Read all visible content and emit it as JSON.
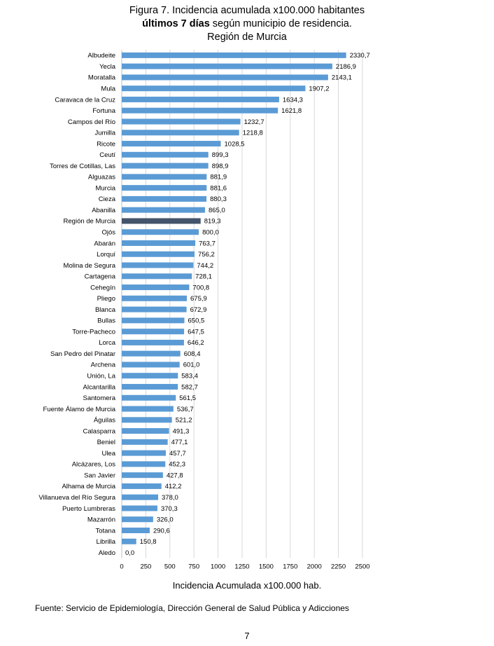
{
  "header": {
    "title_line1": "Figura 7. Incidencia acumulada x100.000 habitantes",
    "title_line2_bold": "últimos 7 días",
    "title_line2_rest": " según municipio de residencia.",
    "title_line3": "Región de Murcia"
  },
  "footer": {
    "source": "Fuente: Servicio de Epidemiología, Dirección General de Salud Pública y Adicciones",
    "page_number": "7"
  },
  "colors": {
    "bar": "#5b9bd5",
    "highlight": "#44546a",
    "grid": "#d9d9d9"
  },
  "chart_data": {
    "type": "bar",
    "orientation": "horizontal",
    "xlabel": "Incidencia Acumulada x100.000 hab.",
    "ylabel": "",
    "xlim": [
      0,
      2500
    ],
    "xticks": [
      0,
      250,
      500,
      750,
      1000,
      1250,
      1500,
      1750,
      2000,
      2250,
      2500
    ],
    "grid": true,
    "highlight_category": "Región de Murcia",
    "categories": [
      "Albudeite",
      "Yecla",
      "Moratalla",
      "Mula",
      "Caravaca de la Cruz",
      "Fortuna",
      "Campos del Río",
      "Jumilla",
      "Ricote",
      "Ceutí",
      "Torres de Cotillas, Las",
      "Alguazas",
      "Murcia",
      "Cieza",
      "Abanilla",
      "Región de Murcia",
      "Ojós",
      "Abarán",
      "Lorquí",
      "Molina de Segura",
      "Cartagena",
      "Cehegín",
      "Pliego",
      "Blanca",
      "Bullas",
      "Torre-Pacheco",
      "Lorca",
      "San Pedro del Pinatar",
      "Archena",
      "Unión, La",
      "Alcantarilla",
      "Santomera",
      "Fuente Álamo de Murcia",
      "Águilas",
      "Calasparra",
      "Beniel",
      "Ulea",
      "Alcázares, Los",
      "San Javier",
      "Alhama de Murcia",
      "Villanueva del Río Segura",
      "Puerto Lumbreras",
      "Mazarrón",
      "Totana",
      "Librilla",
      "Aledo"
    ],
    "values": [
      2330.7,
      2186.9,
      2143.1,
      1907.2,
      1634.3,
      1621.8,
      1232.7,
      1218.8,
      1028.5,
      899.3,
      898.9,
      881.9,
      881.6,
      880.3,
      865.0,
      819.3,
      800.0,
      763.7,
      756.2,
      744.2,
      728.1,
      700.8,
      675.9,
      672.9,
      650.5,
      647.5,
      646.2,
      608.4,
      601.0,
      583.4,
      582.7,
      561.5,
      536.7,
      521.2,
      491.3,
      477.1,
      457.7,
      452.3,
      427.8,
      412.2,
      378.0,
      370.3,
      326.0,
      290.6,
      150.8,
      0.0
    ],
    "value_labels": [
      "2330,7",
      "2186,9",
      "2143,1",
      "1907,2",
      "1634,3",
      "1621,8",
      "1232,7",
      "1218,8",
      "1028,5",
      "899,3",
      "898,9",
      "881,9",
      "881,6",
      "880,3",
      "865,0",
      "819,3",
      "800,0",
      "763,7",
      "756,2",
      "744,2",
      "728,1",
      "700,8",
      "675,9",
      "672,9",
      "650,5",
      "647,5",
      "646,2",
      "608,4",
      "601,0",
      "583,4",
      "582,7",
      "561,5",
      "536,7",
      "521,2",
      "491,3",
      "477,1",
      "457,7",
      "452,3",
      "427,8",
      "412,2",
      "378,0",
      "370,3",
      "326,0",
      "290,6",
      "150,8",
      "0,0"
    ]
  }
}
